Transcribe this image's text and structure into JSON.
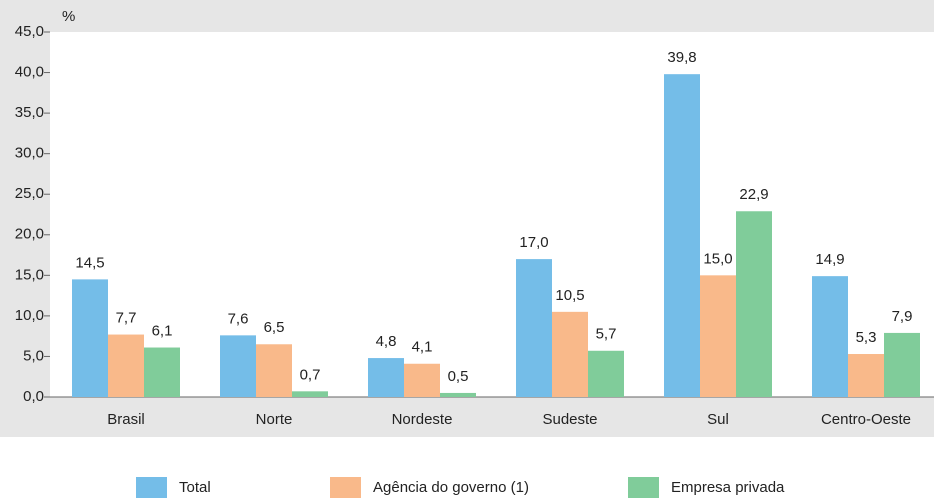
{
  "chart_data": {
    "type": "bar",
    "y_label": "%",
    "categories": [
      "Brasil",
      "Norte",
      "Nordeste",
      "Sudeste",
      "Sul",
      "Centro-Oeste"
    ],
    "series": [
      {
        "name": "Total",
        "color": "#74bde8",
        "values": [
          14.5,
          7.6,
          4.8,
          17.0,
          39.8,
          14.9
        ],
        "value_labels": [
          "14,5",
          "7,6",
          "4,8",
          "17,0",
          "39,8",
          "14,9"
        ]
      },
      {
        "name": "Agência do governo (1)",
        "color": "#f9b98a",
        "values": [
          7.7,
          6.5,
          4.1,
          10.5,
          15.0,
          5.3
        ],
        "value_labels": [
          "7,7",
          "6,5",
          "4,1",
          "10,5",
          "15,0",
          "5,3"
        ]
      },
      {
        "name": "Empresa privada",
        "color": "#80cc9a",
        "values": [
          6.1,
          0.7,
          0.5,
          5.7,
          22.9,
          7.9
        ],
        "value_labels": [
          "6,1",
          "0,7",
          "0,5",
          "5,7",
          "22,9",
          "7,9"
        ]
      }
    ],
    "ylim": [
      0,
      45
    ],
    "yticks": [
      {
        "value": 0,
        "label": "0,0"
      },
      {
        "value": 5,
        "label": "5,0"
      },
      {
        "value": 10,
        "label": "10,0"
      },
      {
        "value": 15,
        "label": "15,0"
      },
      {
        "value": 20,
        "label": "20,0"
      },
      {
        "value": 25,
        "label": "25,0"
      },
      {
        "value": 30,
        "label": "30,0"
      },
      {
        "value": 35,
        "label": "35,0"
      },
      {
        "value": 40,
        "label": "40,0"
      },
      {
        "value": 45,
        "label": "45,0"
      }
    ],
    "legend": "bottom"
  }
}
